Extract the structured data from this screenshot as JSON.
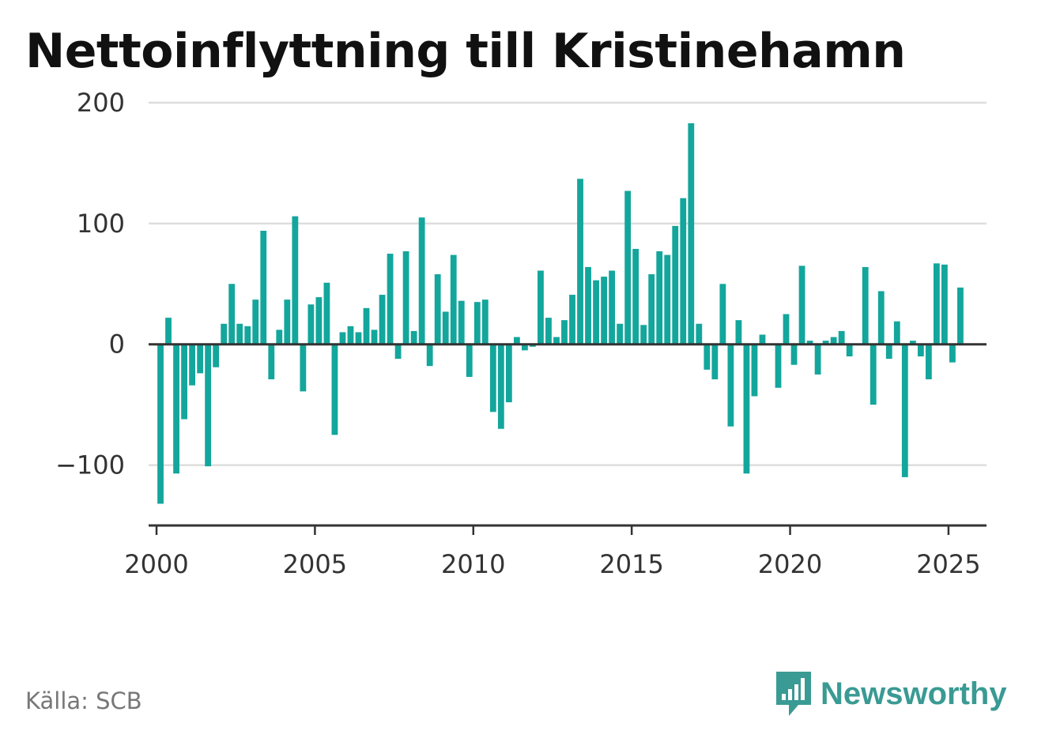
{
  "title": "Nettoinflyttning till Kristinehamn",
  "source": "Källa: SCB",
  "brand": "Newsworthy",
  "colors": {
    "bar": "#13a69c",
    "grid": "#dddddd",
    "axis": "#333333",
    "brand": "#3a9a94"
  },
  "chart_data": {
    "type": "bar",
    "title": "Nettoinflyttning till Kristinehamn",
    "xlabel": "",
    "ylabel": "",
    "ylim": [
      -150,
      200
    ],
    "xlim": [
      1999.75,
      2026.2
    ],
    "yticks": [
      200,
      100,
      0,
      -100
    ],
    "ytick_labels": [
      "200",
      "100",
      "0",
      "−100"
    ],
    "xticks": [
      2000,
      2005,
      2010,
      2015,
      2020,
      2025
    ],
    "xtick_labels": [
      "2000",
      "2005",
      "2010",
      "2015",
      "2020",
      "2025"
    ],
    "grid": true,
    "bar_interval": "quarter",
    "start": "2000 Q1",
    "values": [
      -132,
      22,
      -107,
      -62,
      -34,
      -24,
      -101,
      -19,
      17,
      50,
      17,
      15,
      37,
      94,
      -29,
      12,
      37,
      106,
      -39,
      33,
      39,
      51,
      -75,
      10,
      15,
      10,
      30,
      12,
      41,
      75,
      -12,
      77,
      11,
      105,
      -18,
      58,
      27,
      74,
      36,
      -27,
      35,
      37,
      -56,
      -70,
      -48,
      6,
      -5,
      -2,
      61,
      22,
      6,
      20,
      41,
      137,
      64,
      53,
      56,
      61,
      17,
      127,
      79,
      16,
      58,
      77,
      74,
      98,
      121,
      183,
      17,
      -21,
      -29,
      50,
      -68,
      20,
      -107,
      -43,
      8,
      0,
      -36,
      25,
      -17,
      65,
      3,
      -25,
      3,
      6,
      11,
      -10,
      0,
      64,
      -50,
      44,
      -12,
      19,
      -110,
      3,
      -10,
      -29,
      67,
      66,
      -15,
      47
    ]
  }
}
